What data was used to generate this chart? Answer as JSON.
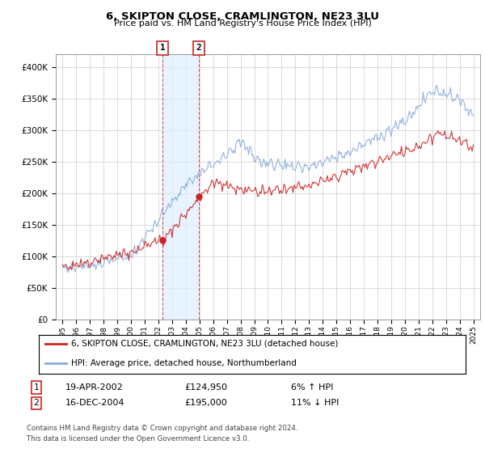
{
  "title": "6, SKIPTON CLOSE, CRAMLINGTON, NE23 3LU",
  "subtitle": "Price paid vs. HM Land Registry's House Price Index (HPI)",
  "yticks": [
    0,
    50000,
    100000,
    150000,
    200000,
    250000,
    300000,
    350000,
    400000
  ],
  "ytick_labels": [
    "£0",
    "£50K",
    "£100K",
    "£150K",
    "£200K",
    "£250K",
    "£300K",
    "£350K",
    "£400K"
  ],
  "xlim_start": 1994.5,
  "xlim_end": 2025.5,
  "ylim": [
    0,
    420000
  ],
  "background_color": "#ffffff",
  "grid_color": "#cccccc",
  "transaction1_date": 2002.29,
  "transaction1_price": 124950,
  "transaction2_date": 2004.96,
  "transaction2_price": 195000,
  "transaction1_text": "19-APR-2002",
  "transaction1_amount": "£124,950",
  "transaction1_hpi": "6% ↑ HPI",
  "transaction2_text": "16-DEC-2004",
  "transaction2_amount": "£195,000",
  "transaction2_hpi": "11% ↓ HPI",
  "red_line_color": "#cc2222",
  "blue_line_color": "#88aadd",
  "shade_color": "#ddeeff",
  "dashed_line_color": "#dd4444",
  "legend_line1": "6, SKIPTON CLOSE, CRAMLINGTON, NE23 3LU (detached house)",
  "legend_line2": "HPI: Average price, detached house, Northumberland",
  "footer": "Contains HM Land Registry data © Crown copyright and database right 2024.\nThis data is licensed under the Open Government Licence v3.0.",
  "xtick_years": [
    1995,
    1996,
    1997,
    1998,
    1999,
    2000,
    2001,
    2002,
    2003,
    2004,
    2005,
    2006,
    2007,
    2008,
    2009,
    2010,
    2011,
    2012,
    2013,
    2014,
    2015,
    2016,
    2017,
    2018,
    2019,
    2020,
    2021,
    2022,
    2023,
    2024,
    2025
  ]
}
